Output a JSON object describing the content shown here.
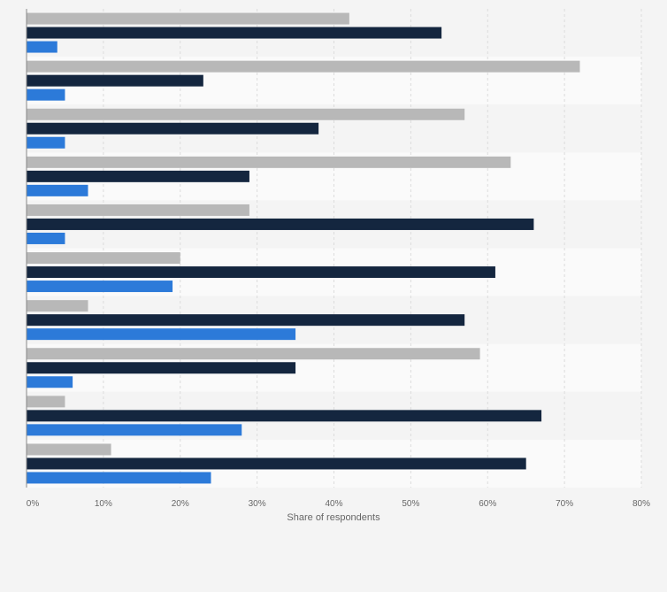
{
  "chart_data": {
    "type": "bar",
    "orientation": "horizontal",
    "xlabel": "Share of respondents",
    "xlim": [
      0,
      80
    ],
    "x_ticks": [
      "0%",
      "10%",
      "20%",
      "30%",
      "40%",
      "50%",
      "60%",
      "70%",
      "80%"
    ],
    "grid": true,
    "legend": "none",
    "series": [
      {
        "color": "#b8b8b8",
        "values": [
          42,
          72,
          57,
          63,
          29,
          20,
          8,
          59,
          5,
          11
        ]
      },
      {
        "color": "#14263f",
        "values": [
          54,
          23,
          38,
          29,
          66,
          61,
          57,
          35,
          67,
          65
        ]
      },
      {
        "color": "#2c7ad9",
        "values": [
          4,
          5,
          5,
          8,
          5,
          19,
          35,
          6,
          28,
          24
        ]
      }
    ]
  }
}
